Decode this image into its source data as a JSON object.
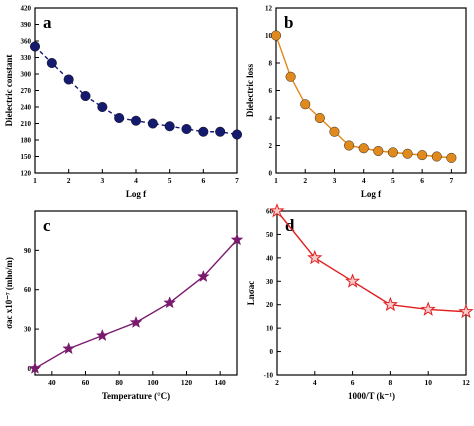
{
  "chart_data": [
    {
      "panel": "a",
      "type": "line",
      "xlabel": "Log f",
      "ylabel": "Dielectric constant",
      "xlim": [
        1,
        7
      ],
      "ylim": [
        120,
        420
      ],
      "xticks": [
        "1",
        "2",
        "3",
        "4",
        "5",
        "6",
        "7"
      ],
      "xtick_values": [
        1,
        2,
        3,
        4,
        5,
        6,
        7
      ],
      "yticks": [
        "120",
        "150",
        "180",
        "210",
        "240",
        "270",
        "300",
        "330",
        "360",
        "390",
        "420"
      ],
      "ytick_values": [
        120,
        150,
        180,
        210,
        240,
        270,
        300,
        330,
        360,
        390,
        420
      ],
      "x": [
        1,
        1.5,
        2,
        2.5,
        3,
        3.5,
        4,
        4.5,
        5,
        5.5,
        6,
        6.5,
        7
      ],
      "y": [
        350,
        320,
        290,
        260,
        240,
        220,
        215,
        210,
        205,
        200,
        195,
        195,
        190
      ],
      "marker": "circle",
      "line_style": "dashed",
      "color": "#141a6e"
    },
    {
      "panel": "b",
      "type": "line",
      "xlabel": "Log f",
      "ylabel": "Dielectric loss",
      "xlim": [
        1,
        7.5
      ],
      "ylim": [
        0,
        12
      ],
      "xticks": [
        "1",
        "2",
        "3",
        "4",
        "5",
        "6",
        "7"
      ],
      "xtick_values": [
        1,
        2,
        3,
        4,
        5,
        6,
        7
      ],
      "yticks": [
        "0",
        "2",
        "4",
        "6",
        "8",
        "10",
        "12"
      ],
      "ytick_values": [
        0,
        2,
        4,
        6,
        8,
        10,
        12
      ],
      "x": [
        1,
        1.5,
        2,
        2.5,
        3,
        3.5,
        4,
        4.5,
        5,
        5.5,
        6,
        6.5,
        7
      ],
      "y": [
        10,
        7,
        5,
        4,
        3,
        2,
        1.8,
        1.6,
        1.5,
        1.4,
        1.3,
        1.2,
        1.1
      ],
      "marker": "circle",
      "line_style": "solid",
      "color": "#e0891c"
    },
    {
      "panel": "c",
      "type": "line",
      "xlabel": "Temperature (°C)",
      "ylabel": "σac x10⁻⁷ (mho/m)",
      "xlim": [
        30,
        150
      ],
      "ylim": [
        -5,
        120
      ],
      "xticks": [
        "40",
        "60",
        "80",
        "100",
        "120",
        "140"
      ],
      "xtick_values": [
        40,
        60,
        80,
        100,
        120,
        140
      ],
      "yticks": [
        "0",
        "30",
        "60",
        "90"
      ],
      "ytick_values": [
        0,
        30,
        60,
        90
      ],
      "x": [
        30,
        50,
        70,
        90,
        110,
        130,
        150
      ],
      "y": [
        0,
        15,
        25,
        35,
        50,
        70,
        98
      ],
      "marker": "star",
      "line_style": "solid",
      "color": "#7a1a6e"
    },
    {
      "panel": "d",
      "type": "line",
      "xlabel": "1000/T (k⁻¹)",
      "ylabel": "Lnσac",
      "xlim": [
        2,
        12
      ],
      "ylim": [
        -10,
        60
      ],
      "xticks": [
        "2",
        "4",
        "6",
        "8",
        "10",
        "12"
      ],
      "xtick_values": [
        2,
        4,
        6,
        8,
        10,
        12
      ],
      "yticks": [
        "-10",
        "0",
        "10",
        "20",
        "30",
        "40",
        "50",
        "60"
      ],
      "ytick_values": [
        -10,
        0,
        10,
        20,
        30,
        40,
        50,
        60
      ],
      "x": [
        2,
        4,
        6,
        8,
        10,
        12
      ],
      "y": [
        60,
        40,
        30,
        20,
        18,
        17
      ],
      "marker": "star",
      "line_style": "solid",
      "color": "#e02020"
    }
  ]
}
